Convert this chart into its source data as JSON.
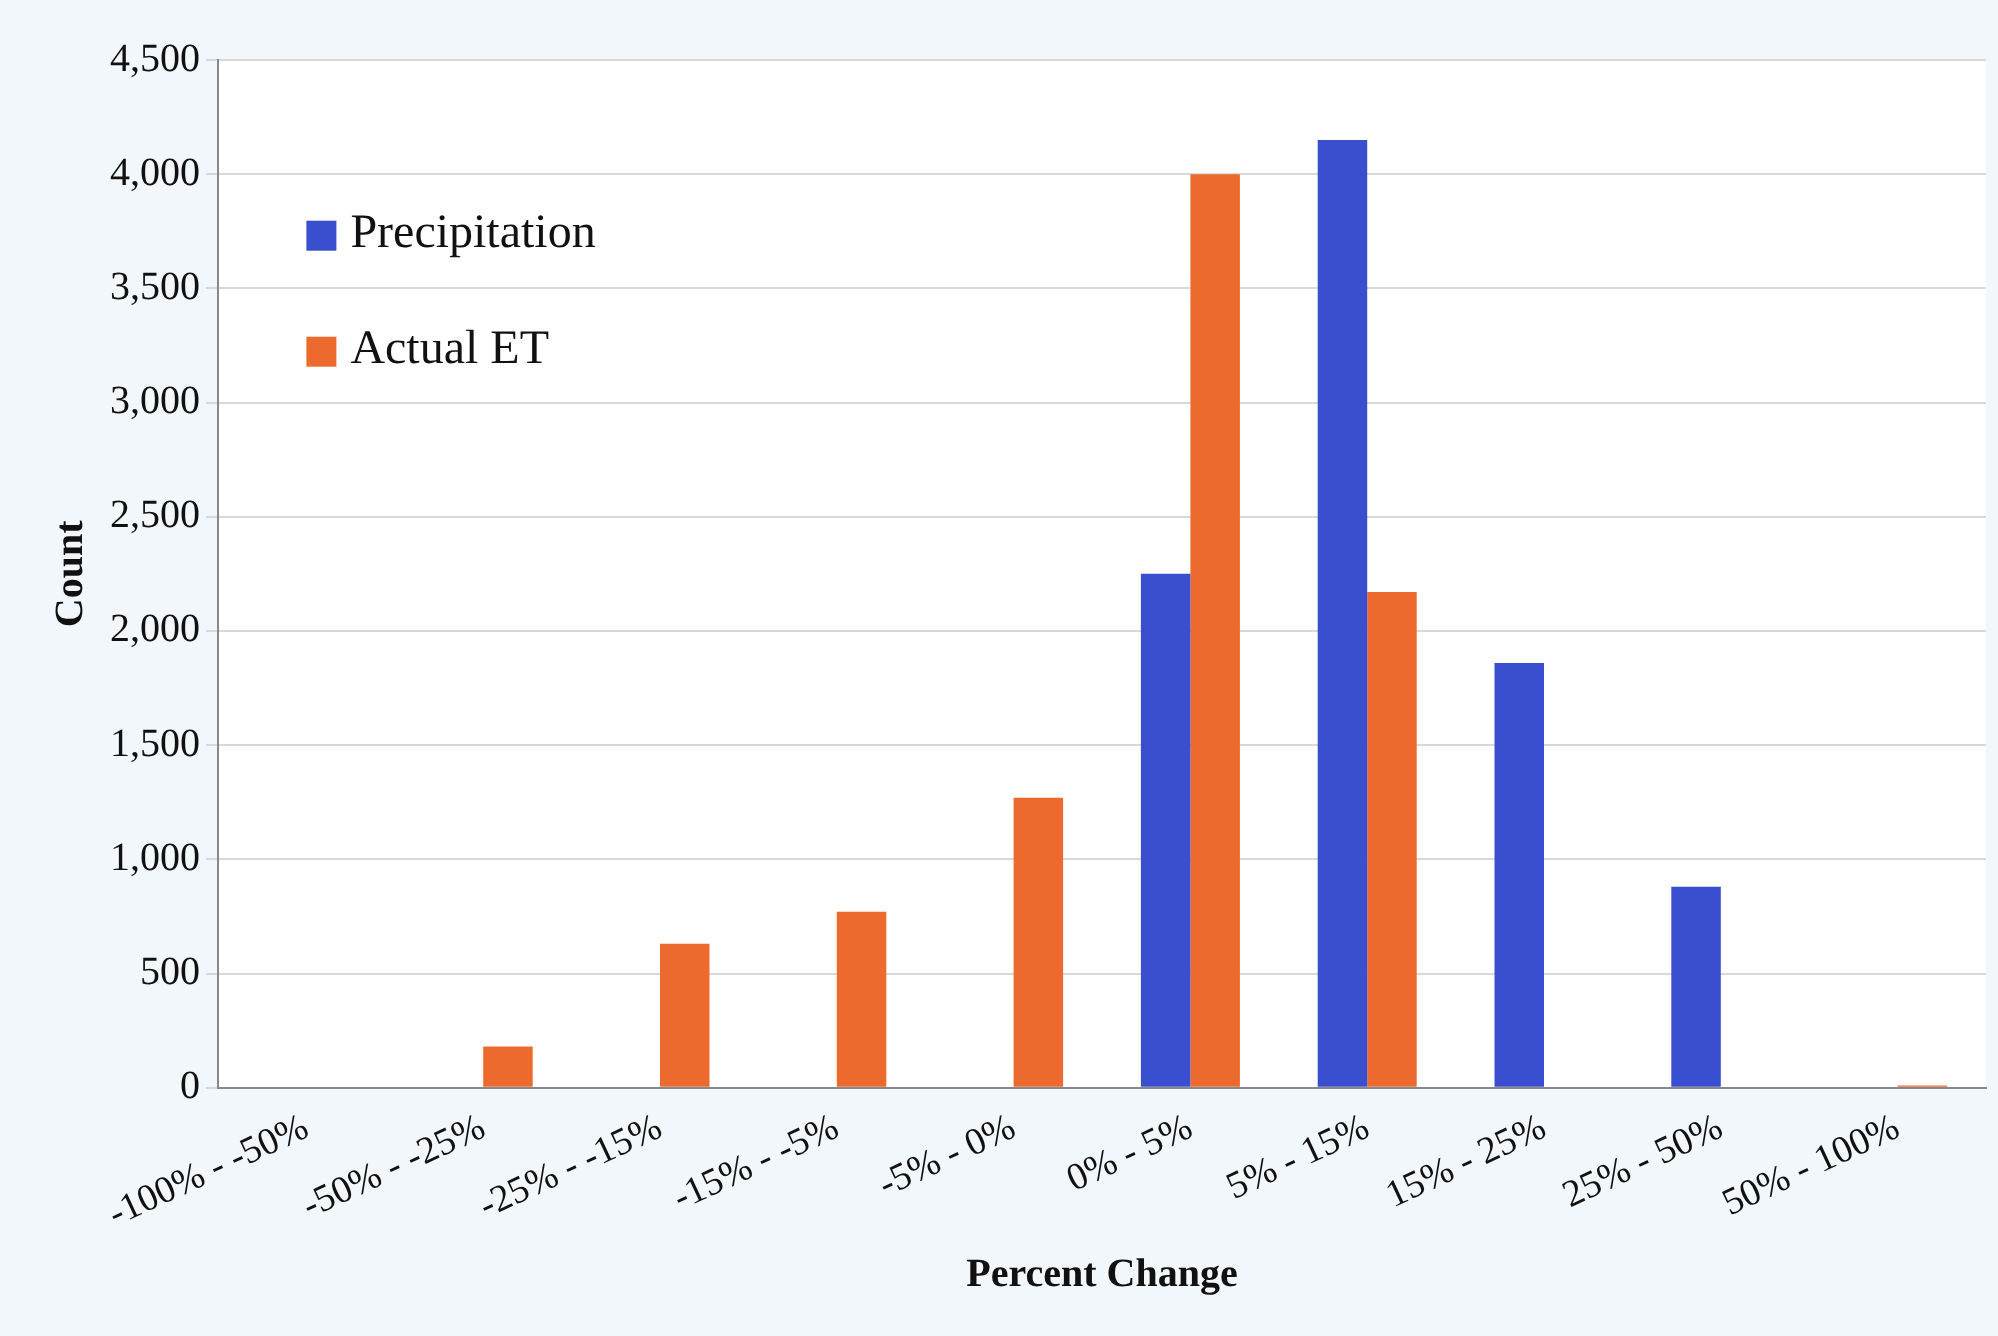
{
  "chart_data": {
    "type": "bar",
    "xlabel": "Percent Change",
    "ylabel": "Count",
    "categories": [
      "-100% - -50%",
      "-50% - -25%",
      "-25% - -15%",
      "-15% - -5%",
      "-5% - 0%",
      "0% - 5%",
      "5% - 15%",
      "15% - 25%",
      "25% - 50%",
      "50% - 100%"
    ],
    "series": [
      {
        "name": "Precipitation",
        "color": "#3a4fd0",
        "values": [
          0,
          0,
          0,
          0,
          0,
          2250,
          4150,
          1860,
          880,
          0
        ]
      },
      {
        "name": "Actual ET",
        "color": "#ec6a2e",
        "values": [
          0,
          180,
          630,
          770,
          1270,
          4000,
          2170,
          0,
          0,
          10
        ]
      }
    ],
    "ylim": [
      0,
      4500
    ],
    "yticks": [
      {
        "value": 0,
        "label": "0"
      },
      {
        "value": 500,
        "label": "500"
      },
      {
        "value": 1000,
        "label": "1,000"
      },
      {
        "value": 1500,
        "label": "1,500"
      },
      {
        "value": 2000,
        "label": "2,000"
      },
      {
        "value": 2500,
        "label": "2,500"
      },
      {
        "value": 3000,
        "label": "3,000"
      },
      {
        "value": 3500,
        "label": "3,500"
      },
      {
        "value": 4000,
        "label": "4,000"
      },
      {
        "value": 4500,
        "label": "4,500"
      }
    ],
    "grid": "y",
    "legend": "top left"
  }
}
